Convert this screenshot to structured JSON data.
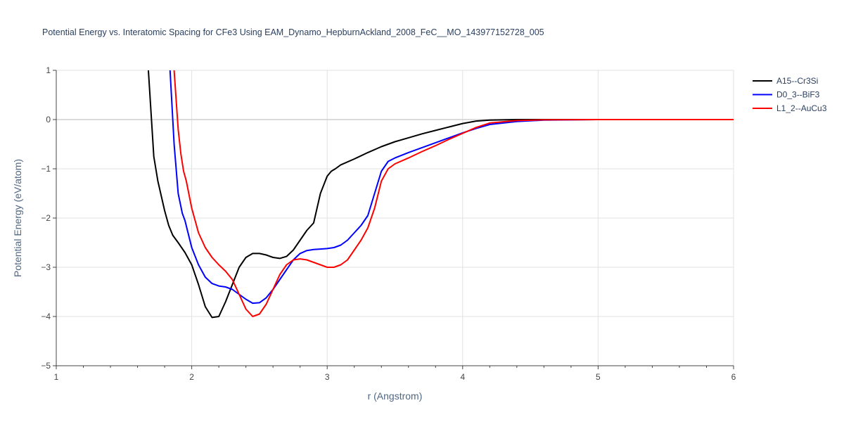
{
  "chart_data": {
    "type": "line",
    "title": "Potential Energy vs. Interatomic Spacing for CFe3 Using EAM_Dynamo_HepburnAckland_2008_FeC__MO_143977152728_005",
    "xlabel": "r (Angstrom)",
    "ylabel": "Potential Energy (eV/atom)",
    "xlim": [
      1,
      6
    ],
    "ylim": [
      -5,
      1
    ],
    "xticks": [
      1,
      2,
      3,
      4,
      5,
      6
    ],
    "yticks": [
      1,
      0,
      -1,
      -2,
      -3,
      -4,
      -5
    ],
    "ytick_labels": [
      "1",
      "0",
      "−1",
      "−2",
      "−3",
      "−4",
      "−5"
    ],
    "grid": true,
    "legend_position": "top-right",
    "series": [
      {
        "name": "A15--Cr3Si",
        "color": "#000000",
        "x": [
          1.68,
          1.72,
          1.75,
          1.8,
          1.83,
          1.86,
          1.9,
          1.95,
          2.0,
          2.05,
          2.1,
          2.15,
          2.2,
          2.25,
          2.3,
          2.35,
          2.4,
          2.45,
          2.5,
          2.55,
          2.6,
          2.65,
          2.7,
          2.75,
          2.8,
          2.85,
          2.9,
          2.95,
          3.0,
          3.03,
          3.06,
          3.1,
          3.2,
          3.3,
          3.4,
          3.5,
          3.6,
          3.7,
          3.8,
          3.9,
          4.0,
          4.1,
          4.2,
          4.4,
          4.6,
          5.0,
          5.5,
          6.0
        ],
        "y": [
          1.0,
          -0.75,
          -1.25,
          -1.85,
          -2.15,
          -2.35,
          -2.5,
          -2.7,
          -2.95,
          -3.35,
          -3.8,
          -4.02,
          -4.0,
          -3.7,
          -3.35,
          -3.0,
          -2.8,
          -2.72,
          -2.72,
          -2.75,
          -2.8,
          -2.82,
          -2.78,
          -2.65,
          -2.45,
          -2.25,
          -2.1,
          -1.5,
          -1.15,
          -1.05,
          -1.0,
          -0.92,
          -0.8,
          -0.67,
          -0.55,
          -0.45,
          -0.37,
          -0.29,
          -0.22,
          -0.15,
          -0.08,
          -0.03,
          -0.01,
          0.0,
          0.0,
          0.0,
          0.0,
          0.0
        ]
      },
      {
        "name": "D0_3--BiF3",
        "color": "#0000ff",
        "x": [
          1.84,
          1.87,
          1.9,
          1.93,
          1.95,
          2.0,
          2.05,
          2.1,
          2.15,
          2.2,
          2.25,
          2.3,
          2.35,
          2.4,
          2.45,
          2.5,
          2.55,
          2.6,
          2.65,
          2.7,
          2.75,
          2.8,
          2.85,
          2.9,
          2.95,
          3.0,
          3.05,
          3.1,
          3.15,
          3.2,
          3.25,
          3.3,
          3.35,
          3.4,
          3.45,
          3.5,
          3.6,
          3.7,
          3.8,
          3.9,
          4.0,
          4.1,
          4.2,
          4.4,
          4.6,
          5.0,
          5.5,
          6.0
        ],
        "y": [
          1.0,
          -0.5,
          -1.5,
          -1.9,
          -2.05,
          -2.6,
          -2.95,
          -3.2,
          -3.33,
          -3.38,
          -3.4,
          -3.45,
          -3.55,
          -3.65,
          -3.73,
          -3.72,
          -3.62,
          -3.45,
          -3.25,
          -3.05,
          -2.85,
          -2.72,
          -2.66,
          -2.64,
          -2.63,
          -2.62,
          -2.6,
          -2.55,
          -2.45,
          -2.3,
          -2.15,
          -1.95,
          -1.5,
          -1.05,
          -0.85,
          -0.78,
          -0.67,
          -0.57,
          -0.47,
          -0.37,
          -0.27,
          -0.18,
          -0.1,
          -0.04,
          -0.01,
          0.0,
          0.0,
          0.0
        ]
      },
      {
        "name": "L1_2--AuCu3",
        "color": "#ff0000",
        "x": [
          1.87,
          1.9,
          1.92,
          1.94,
          1.96,
          2.0,
          2.05,
          2.1,
          2.15,
          2.2,
          2.25,
          2.3,
          2.35,
          2.4,
          2.45,
          2.5,
          2.55,
          2.6,
          2.65,
          2.7,
          2.75,
          2.8,
          2.85,
          2.9,
          2.95,
          3.0,
          3.05,
          3.1,
          3.15,
          3.2,
          3.25,
          3.3,
          3.35,
          3.4,
          3.45,
          3.5,
          3.6,
          3.7,
          3.8,
          3.9,
          4.0,
          4.1,
          4.2,
          4.4,
          4.6,
          5.0,
          5.5,
          6.0
        ],
        "y": [
          1.0,
          -0.2,
          -0.7,
          -1.05,
          -1.25,
          -1.8,
          -2.3,
          -2.6,
          -2.8,
          -2.95,
          -3.08,
          -3.25,
          -3.55,
          -3.85,
          -4.0,
          -3.95,
          -3.75,
          -3.45,
          -3.15,
          -2.95,
          -2.85,
          -2.83,
          -2.85,
          -2.9,
          -2.95,
          -3.0,
          -3.0,
          -2.95,
          -2.85,
          -2.65,
          -2.45,
          -2.2,
          -1.8,
          -1.25,
          -1.0,
          -0.9,
          -0.78,
          -0.65,
          -0.53,
          -0.4,
          -0.28,
          -0.16,
          -0.07,
          -0.02,
          -0.005,
          0.0,
          0.0,
          0.0
        ]
      }
    ]
  }
}
